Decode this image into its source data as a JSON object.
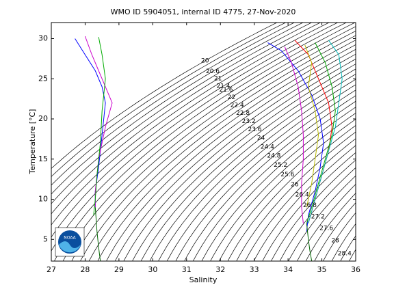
{
  "chart_data": {
    "type": "ts-diagram",
    "title": "WMO ID 5904051, internal ID 4775, 27-Nov-2020",
    "xlabel": "Salinity",
    "ylabel": "Temperature [°C]",
    "xlim": [
      27,
      36
    ],
    "ylim": [
      2.3,
      32
    ],
    "xticks": [
      27,
      28,
      29,
      30,
      31,
      32,
      33,
      34,
      35,
      36
    ],
    "yticks": [
      5,
      10,
      15,
      20,
      25,
      30
    ],
    "contour_levels": [
      20,
      20.2,
      20.4,
      20.6,
      20.8,
      21,
      21.2,
      21.4,
      21.6,
      21.8,
      22,
      22.2,
      22.4,
      22.6,
      22.8,
      23,
      23.2,
      23.4,
      23.6,
      23.8,
      24,
      24.2,
      24.4,
      24.6,
      24.8,
      25,
      25.2,
      25.4,
      25.6,
      25.8,
      26,
      26.2,
      26.4,
      26.6,
      26.8,
      27,
      27.2,
      27.4,
      27.6,
      27.8,
      28,
      28.2,
      28.4,
      28.6
    ],
    "contour_labels": [
      20,
      20.6,
      21,
      21.4,
      21.6,
      22,
      22.4,
      22.8,
      23.2,
      23.6,
      24,
      24.4,
      24.8,
      25.2,
      25.6,
      26,
      26.4,
      26.8,
      27.2,
      27.6,
      28,
      28.4
    ],
    "logo_text": "NOAA",
    "series": [
      {
        "color": "#0000ff",
        "x": [
          33.4,
          33.8,
          34.3,
          34.7,
          34.95,
          35.05,
          34.95,
          34.8,
          34.6,
          34.55
        ],
        "y": [
          29.5,
          28.5,
          26,
          23,
          20,
          17,
          14,
          11,
          8,
          6
        ]
      },
      {
        "color": "#ff0000",
        "x": [
          34.2,
          34.6,
          34.9,
          35.2,
          35.3,
          35.2,
          35.0,
          34.8,
          34.6
        ],
        "y": [
          29.8,
          28,
          25,
          22,
          19,
          16,
          13,
          10,
          7
        ]
      },
      {
        "color": "#00aa00",
        "x": [
          34.8,
          35.1,
          35.3,
          35.4,
          35.3,
          35.1,
          34.9,
          34.7,
          34.55
        ],
        "y": [
          29.5,
          27,
          24,
          21,
          18,
          15,
          12,
          9,
          7
        ]
      },
      {
        "color": "#cc00cc",
        "x": [
          33.9,
          34.1,
          34.3,
          34.4,
          34.45,
          34.45,
          34.4,
          34.4,
          34.45
        ],
        "y": [
          29,
          27,
          24,
          21,
          18,
          15,
          12,
          9,
          7
        ]
      },
      {
        "color": "#00bbbb",
        "x": [
          35.2,
          35.5,
          35.6,
          35.5,
          35.4,
          35.2,
          35.0,
          34.8,
          34.6
        ],
        "y": [
          29.8,
          28,
          25,
          22,
          19,
          16,
          13,
          10,
          7
        ]
      },
      {
        "color": "#bbbb00",
        "x": [
          34.5,
          34.7,
          34.6,
          34.8,
          34.9,
          34.8,
          34.7,
          34.55
        ],
        "y": [
          29.2,
          27,
          24,
          21,
          18,
          15,
          12,
          9
        ]
      },
      {
        "color": "#006400",
        "x": [
          34.55,
          34.6,
          34.65,
          34.7
        ],
        "y": [
          7,
          5,
          3.5,
          2.3
        ]
      },
      {
        "color": "#0000ff",
        "x": [
          27.7,
          28.0,
          28.3,
          28.5,
          28.6,
          28.5,
          28.4,
          28.3,
          28.3
        ],
        "y": [
          30,
          28,
          26,
          24,
          22,
          18,
          14,
          11,
          9
        ]
      },
      {
        "color": "#cc00cc",
        "x": [
          28.0,
          28.2,
          28.4,
          28.7,
          28.8,
          28.6,
          28.4,
          28.3,
          28.3
        ],
        "y": [
          30.3,
          28,
          26,
          23,
          22,
          19,
          15,
          11,
          9
        ]
      },
      {
        "color": "#00aa00",
        "x": [
          28.4,
          28.5,
          28.6,
          28.5,
          28.45,
          28.35,
          28.3,
          28.25
        ],
        "y": [
          30.2,
          28,
          25,
          21,
          17,
          13,
          10,
          8
        ]
      },
      {
        "color": "#006400",
        "x": [
          28.3,
          28.35,
          28.4,
          28.45
        ],
        "y": [
          9,
          6,
          4,
          2.3
        ]
      }
    ]
  }
}
